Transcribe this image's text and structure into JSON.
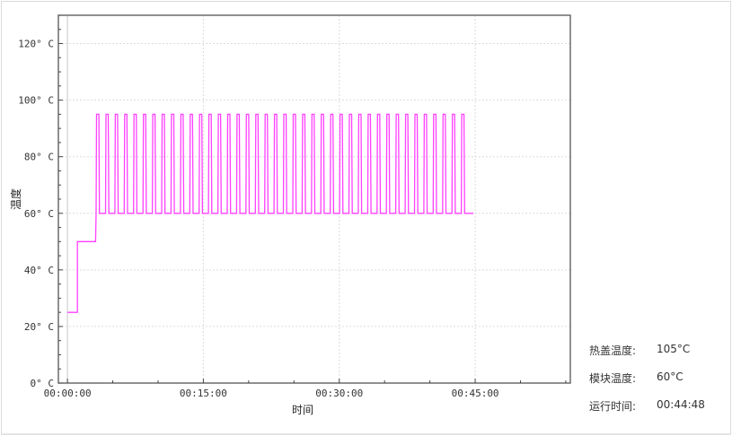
{
  "chart_data": {
    "type": "line",
    "xlabel": "时间",
    "ylabel": "温度",
    "xlim": [
      "-00:01:00",
      "00:55:30"
    ],
    "ylim": [
      0,
      130
    ],
    "grid": true,
    "x_ticks": [
      "00:00:00",
      "00:15:00",
      "00:30:00",
      "00:45:00"
    ],
    "y_ticks": [
      0,
      20,
      40,
      60,
      80,
      100,
      120
    ],
    "y_tick_labels": [
      "0° C",
      "20° C",
      "40° C",
      "60° C",
      "80° C",
      "100° C",
      "120° C"
    ],
    "series": [
      {
        "color": "#ff40ff",
        "x": [
          "00:00:00",
          "00:01:06",
          "00:01:06",
          "00:03:06",
          "00:03:10",
          "00:03:13",
          "00:03:28",
          "00:03:32",
          "00:04:12",
          "00:04:15",
          "00:04:30",
          "00:04:34",
          "00:05:14",
          "00:05:17",
          "00:05:32",
          "00:05:36",
          "00:06:16",
          "00:06:19",
          "00:06:34",
          "00:06:38",
          "00:07:18",
          "00:07:21",
          "00:07:36",
          "00:07:40",
          "00:08:20",
          "00:08:23",
          "00:08:38",
          "00:08:42",
          "00:09:22",
          "00:09:25",
          "00:09:40",
          "00:09:44",
          "00:10:24",
          "00:10:27",
          "00:10:42",
          "00:10:46",
          "00:11:26",
          "00:11:29",
          "00:11:44",
          "00:11:48",
          "00:12:28",
          "00:12:31",
          "00:12:46",
          "00:12:50",
          "00:13:30",
          "00:13:33",
          "00:13:48",
          "00:13:52",
          "00:14:32",
          "00:14:35",
          "00:14:50",
          "00:14:54",
          "00:15:34",
          "00:15:37",
          "00:15:52",
          "00:15:56",
          "00:16:36",
          "00:16:39",
          "00:16:54",
          "00:16:58",
          "00:17:38",
          "00:17:41",
          "00:17:56",
          "00:18:00",
          "00:18:40",
          "00:18:43",
          "00:18:58",
          "00:19:02",
          "00:19:42",
          "00:19:45",
          "00:20:00",
          "00:20:04",
          "00:20:44",
          "00:20:47",
          "00:21:02",
          "00:21:06",
          "00:21:46",
          "00:21:49",
          "00:22:04",
          "00:22:08",
          "00:22:48",
          "00:22:51",
          "00:23:06",
          "00:23:10",
          "00:23:50",
          "00:23:53",
          "00:24:08",
          "00:24:12",
          "00:24:52",
          "00:24:55",
          "00:25:10",
          "00:25:14",
          "00:25:54",
          "00:25:57",
          "00:26:12",
          "00:26:16",
          "00:26:56",
          "00:26:59",
          "00:27:14",
          "00:27:18",
          "00:27:58",
          "00:28:01",
          "00:28:16",
          "00:28:20",
          "00:29:00",
          "00:29:03",
          "00:29:18",
          "00:29:22",
          "00:30:02",
          "00:30:05",
          "00:30:20",
          "00:30:24",
          "00:31:04",
          "00:31:07",
          "00:31:22",
          "00:31:26",
          "00:32:06",
          "00:32:09",
          "00:32:24",
          "00:32:28",
          "00:33:08",
          "00:33:11",
          "00:33:26",
          "00:33:30",
          "00:34:10",
          "00:34:13",
          "00:34:28",
          "00:34:32",
          "00:35:12",
          "00:35:15",
          "00:35:30",
          "00:35:34",
          "00:36:14",
          "00:36:17",
          "00:36:32",
          "00:36:36",
          "00:37:16",
          "00:37:19",
          "00:37:34",
          "00:37:38",
          "00:38:18",
          "00:38:21",
          "00:38:36",
          "00:38:40",
          "00:39:20",
          "00:39:23",
          "00:39:38",
          "00:39:42",
          "00:40:22",
          "00:40:25",
          "00:40:40",
          "00:40:44",
          "00:41:24",
          "00:41:27",
          "00:41:42",
          "00:41:46",
          "00:42:26",
          "00:42:29",
          "00:42:44",
          "00:42:48",
          "00:43:28",
          "00:43:31",
          "00:43:46",
          "00:43:50",
          "00:44:48"
        ],
        "y": [
          25,
          25,
          50,
          50,
          60,
          95,
          95,
          60,
          60,
          95,
          95,
          60,
          60,
          95,
          95,
          60,
          60,
          95,
          95,
          60,
          60,
          95,
          95,
          60,
          60,
          95,
          95,
          60,
          60,
          95,
          95,
          60,
          60,
          95,
          95,
          60,
          60,
          95,
          95,
          60,
          60,
          95,
          95,
          60,
          60,
          95,
          95,
          60,
          60,
          95,
          95,
          60,
          60,
          95,
          95,
          60,
          60,
          95,
          95,
          60,
          60,
          95,
          95,
          60,
          60,
          95,
          95,
          60,
          60,
          95,
          95,
          60,
          60,
          95,
          95,
          60,
          60,
          95,
          95,
          60,
          60,
          95,
          95,
          60,
          60,
          95,
          95,
          60,
          60,
          95,
          95,
          60,
          60,
          95,
          95,
          60,
          60,
          95,
          95,
          60,
          60,
          95,
          95,
          60,
          60,
          95,
          95,
          60,
          60,
          95,
          95,
          60,
          60,
          95,
          95,
          60,
          60,
          95,
          95,
          60,
          60,
          95,
          95,
          60,
          60,
          95,
          95,
          60,
          60,
          95,
          95,
          60,
          60,
          95,
          95,
          60,
          60,
          95,
          95,
          60,
          60,
          95,
          95,
          60,
          60,
          95,
          95,
          60,
          60,
          95,
          95,
          60,
          60,
          95,
          95,
          60,
          60,
          95,
          95,
          60,
          60,
          95,
          95,
          60,
          60
        ]
      }
    ]
  },
  "info": [
    {
      "label": "热盖温度:",
      "value": "105°C"
    },
    {
      "label": "模块温度:",
      "value": "60°C"
    },
    {
      "label": "运行时间:",
      "value": "00:44:48"
    }
  ]
}
